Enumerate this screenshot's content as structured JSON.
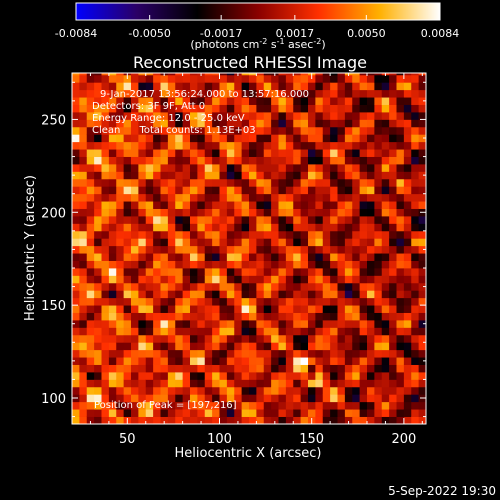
{
  "chart_data": {
    "type": "heatmap",
    "title": "Reconstructed RHESSI Image",
    "colorbar": {
      "range": [
        -0.0084,
        0.0084
      ],
      "tick_labels": [
        "-0.0084",
        "-0.0050",
        "-0.0017",
        "0.0017",
        "0.0050",
        "0.0084"
      ],
      "tick_values": [
        -0.0084,
        -0.005,
        -0.0017,
        0.0017,
        0.005,
        0.0084
      ],
      "unit_main": "(photons cm",
      "unit_exp1": "-2",
      "unit_s": " s",
      "unit_exp2": "-1",
      "unit_asec": " asec",
      "unit_exp3": "-2",
      "unit_close": ")",
      "colors": [
        "#0000ff",
        "#2a0066",
        "#000000",
        "#8a0000",
        "#ff3000",
        "#ffb000",
        "#ffffff"
      ]
    },
    "xlabel": "Heliocentric X (arcsec)",
    "ylabel": "Heliocentric Y (arcsec)",
    "xlim": [
      20,
      212
    ],
    "ylim": [
      86,
      275
    ],
    "xticks": [
      50,
      100,
      150,
      200
    ],
    "yticks": [
      100,
      150,
      200,
      250
    ],
    "annotations": [
      "9-Jan-2017 13:56:24.000 to 13:57:16.000",
      "Detectors: 3F 9F, Att 0",
      "Energy Range: 12.0 - 25.0 keV",
      "Clean      Total counts: 1.13E+03"
    ],
    "peak_label": "Position of Peak = [197,216]",
    "peak": [
      197,
      216
    ],
    "source_blob": [
      150,
      114
    ]
  },
  "footer": {
    "date": "5-Sep-2022 19:30"
  }
}
